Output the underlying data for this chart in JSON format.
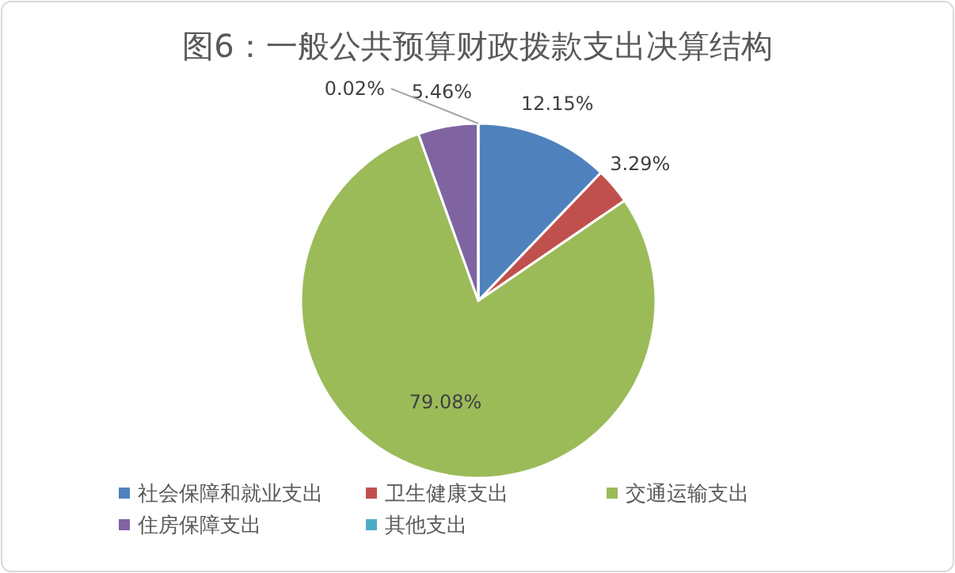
{
  "chart_data": {
    "type": "pie",
    "title": "图6：一般公共预算财政拨款支出决算结构",
    "categories": [
      "社会保障和就业支出",
      "卫生健康支出",
      "交通运输支出",
      "住房保障支出",
      "其他支出"
    ],
    "values": [
      12.15,
      3.29,
      79.08,
      5.46,
      0.02
    ],
    "colors": [
      "#4f81bd",
      "#c0504d",
      "#9bbb59",
      "#8064a2",
      "#4bacc6"
    ],
    "value_labels": [
      "12.15%",
      "3.29%",
      "79.08%",
      "5.46%",
      "0.02%"
    ],
    "data_labels": true,
    "legend": "bottom"
  }
}
